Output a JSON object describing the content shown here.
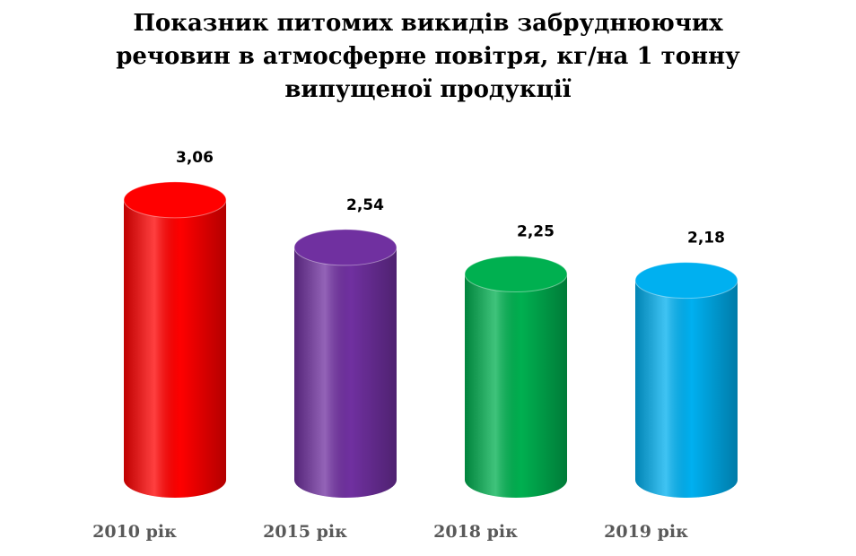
{
  "chart_data": {
    "type": "cylinder",
    "title": "Показник питомих викидів забруднюючих речовин в атмосферне повітря, кг/на 1 тонну випущеної продукції",
    "categories": [
      "2010 рік",
      "2015 рік",
      "2018 рік",
      "2019 рік"
    ],
    "values": [
      3.06,
      2.54,
      2.25,
      2.18
    ],
    "value_labels": [
      "3,06",
      "2,54",
      "2,25",
      "2,18"
    ],
    "colors": [
      "#ff0000",
      "#7030a0",
      "#00b050",
      "#00b0f0"
    ]
  }
}
